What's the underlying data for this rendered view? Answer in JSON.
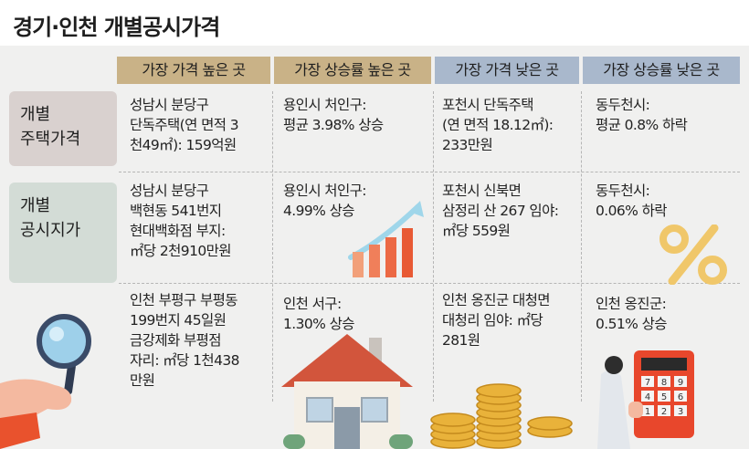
{
  "title": "경기·인천 개별공시가격",
  "columns": [
    {
      "label": "가장 가격 높은 곳"
    },
    {
      "label": "가장 상승률 높은 곳"
    },
    {
      "label": "가장  가격 낮은 곳"
    },
    {
      "label": "가장 상승률 낮은 곳"
    }
  ],
  "rows": [
    {
      "header": [
        "개별",
        "주택가격"
      ],
      "cells": [
        [
          "성남시 분당구",
          "단독주택(연 면적 3",
          "천49㎡): 159억원"
        ],
        [
          "용인시 처인구:",
          "평균 3.98% 상승"
        ],
        [
          "포천시 단독주택",
          "(연 면적 18.12㎡):",
          "233만원"
        ],
        [
          "동두천시:",
          "평균 0.8% 하락"
        ]
      ]
    },
    {
      "header": [
        "개별",
        "공시지가"
      ],
      "cells": [
        [
          "성남시 분당구",
          "백현동 541번지",
          "현대백화점 부지:",
          "㎡당 2천910만원"
        ],
        [
          "용인시 처인구:",
          "4.99% 상승"
        ],
        [
          "포천시 신북면",
          "삼정리 산 267 임야:",
          "㎡당 559원"
        ],
        [
          "동두천시:",
          "0.06% 하락"
        ]
      ]
    },
    {
      "header": [],
      "cells": [
        [
          "인천 부평구 부평동",
          "199번지 45일원",
          "금강제화 부평점",
          "자리: ㎡당 1천438",
          "만원"
        ],
        [
          "인천 서구:",
          "1.30% 상승"
        ],
        [
          "인천 옹진군 대청면",
          "대청리 임야: ㎡당",
          "281원"
        ],
        [
          "인천 옹진군:",
          "0.51% 상승"
        ]
      ]
    }
  ],
  "calculator_keys": [
    "7",
    "8",
    "9",
    "4",
    "5",
    "6",
    "1",
    "2",
    "3"
  ],
  "colors": {
    "header_warm": "#c9b287",
    "header_cool": "#a9b8cc",
    "row_header_1": "#d9d1cf",
    "row_header_2": "#d3dcd6",
    "background": "#f0f0ef"
  }
}
